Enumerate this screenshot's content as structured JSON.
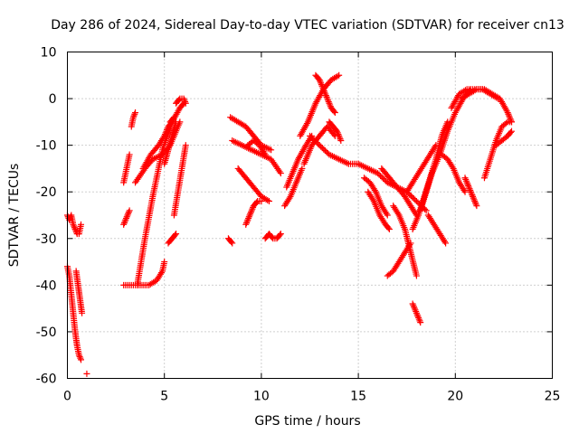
{
  "chart_data": {
    "type": "scatter",
    "title": "Day 286 of 2024, Sidereal Day-to-day VTEC variation (SDTVAR) for receiver cn13",
    "xlabel": "GPS time / hours",
    "ylabel": "SDTVAR / TECUs",
    "xlim": [
      0,
      25
    ],
    "ylim": [
      -60,
      10
    ],
    "x_ticks": [
      0,
      5,
      10,
      15,
      20,
      25
    ],
    "y_ticks": [
      -60,
      -50,
      -40,
      -30,
      -20,
      -10,
      0,
      10
    ],
    "grid": true,
    "marker": "+",
    "series_color": "#ff0000",
    "tracks": [
      {
        "name": "arc-1",
        "x": [
          0.0,
          0.1,
          0.2,
          0.3,
          0.4,
          0.5,
          0.6,
          0.7
        ],
        "y": [
          -25,
          -26,
          -25,
          -27,
          -28,
          -29,
          -29,
          -27
        ]
      },
      {
        "name": "arc-2",
        "x": [
          0.0,
          0.1,
          0.2,
          0.3,
          0.4,
          0.5,
          0.6,
          0.7
        ],
        "y": [
          -36,
          -38,
          -42,
          -46,
          -50,
          -53,
          -55,
          -56
        ]
      },
      {
        "name": "arc-3",
        "x": [
          0.45,
          0.55,
          0.65,
          0.75
        ],
        "y": [
          -37,
          -40,
          -43,
          -46
        ]
      },
      {
        "name": "arc-4",
        "x": [
          1.0
        ],
        "y": [
          -59
        ]
      },
      {
        "name": "arc-5",
        "x": [
          2.9,
          3.0,
          3.1,
          3.2
        ],
        "y": [
          -27,
          -26,
          -25,
          -24
        ]
      },
      {
        "name": "arc-6",
        "x": [
          2.9,
          3.0,
          3.1,
          3.2
        ],
        "y": [
          -18,
          -16,
          -14,
          -12
        ]
      },
      {
        "name": "arc-7",
        "x": [
          3.3,
          3.4,
          3.5
        ],
        "y": [
          -6,
          -4,
          -3
        ]
      },
      {
        "name": "arc-8",
        "x": [
          2.9,
          3.3,
          3.8,
          4.2,
          4.6,
          4.9,
          5.0
        ],
        "y": [
          -40,
          -40,
          -40,
          -40,
          -39,
          -37,
          -35
        ]
      },
      {
        "name": "arc-9",
        "x": [
          3.5,
          4.0,
          4.4,
          4.9,
          5.3,
          5.8
        ],
        "y": [
          -18,
          -15,
          -13,
          -12,
          -10,
          -5
        ]
      },
      {
        "name": "arc-10",
        "x": [
          3.6,
          4.0,
          4.4,
          4.9,
          5.4,
          5.8,
          6.0
        ],
        "y": [
          -40,
          -30,
          -21,
          -11,
          -5,
          -2,
          -1
        ]
      },
      {
        "name": "arc-11",
        "x": [
          3.9,
          4.3,
          4.7,
          5.0,
          5.2,
          5.4
        ],
        "y": [
          -15,
          -12,
          -10,
          -8,
          -6,
          -5
        ]
      },
      {
        "name": "arc-12",
        "x": [
          5.0,
          5.2,
          5.4,
          5.6
        ],
        "y": [
          -14,
          -11,
          -8,
          -5
        ]
      },
      {
        "name": "arc-13",
        "x": [
          5.2,
          5.4,
          5.6
        ],
        "y": [
          -31,
          -30,
          -29
        ]
      },
      {
        "name": "arc-14",
        "x": [
          5.5,
          5.7,
          5.9,
          6.1
        ],
        "y": [
          -25,
          -20,
          -15,
          -10
        ]
      },
      {
        "name": "arc-15",
        "x": [
          5.6,
          5.8,
          6.0,
          6.1
        ],
        "y": [
          -1,
          0,
          0,
          -1
        ]
      },
      {
        "name": "arc-16",
        "x": [
          5.3,
          5.5
        ],
        "y": [
          -5,
          -4
        ]
      },
      {
        "name": "arc-17",
        "x": [
          8.3,
          8.5
        ],
        "y": [
          -30,
          -31
        ]
      },
      {
        "name": "arc-18",
        "x": [
          8.4,
          8.8,
          9.2,
          9.6,
          10.0,
          10.5
        ],
        "y": [
          -4,
          -5,
          -6,
          -8,
          -10,
          -11
        ]
      },
      {
        "name": "arc-19",
        "x": [
          8.5,
          9.0,
          9.5,
          10.0,
          10.5,
          11.0
        ],
        "y": [
          -9,
          -10,
          -11,
          -12,
          -13,
          -16
        ]
      },
      {
        "name": "arc-20",
        "x": [
          8.8,
          9.2,
          9.6,
          10.0,
          10.4
        ],
        "y": [
          -15,
          -17,
          -19,
          -21,
          -22
        ]
      },
      {
        "name": "arc-21",
        "x": [
          9.2,
          9.4,
          9.6,
          9.8,
          10.0
        ],
        "y": [
          -27,
          -25,
          -23,
          -22,
          -22
        ]
      },
      {
        "name": "arc-22",
        "x": [
          9.3,
          9.6,
          9.9,
          10.2
        ],
        "y": [
          -10,
          -9,
          -10,
          -12
        ]
      },
      {
        "name": "arc-23",
        "x": [
          10.2,
          10.4,
          10.6,
          10.8,
          11.0
        ],
        "y": [
          -30,
          -29,
          -30,
          -30,
          -29
        ]
      },
      {
        "name": "arc-24",
        "x": [
          11.2,
          11.5,
          11.8,
          12.1
        ],
        "y": [
          -23,
          -21,
          -18,
          -15
        ]
      },
      {
        "name": "arc-25",
        "x": [
          11.3,
          11.6,
          11.9,
          12.3,
          12.6
        ],
        "y": [
          -19,
          -16,
          -13,
          -10,
          -8
        ]
      },
      {
        "name": "arc-26",
        "x": [
          12.0,
          12.4,
          12.8,
          13.2,
          13.6,
          14.0
        ],
        "y": [
          -8,
          -5,
          -1,
          2,
          4,
          5
        ]
      },
      {
        "name": "arc-27",
        "x": [
          12.5,
          13.0,
          13.5,
          14.0,
          14.5,
          15.0
        ],
        "y": [
          -8,
          -10,
          -12,
          -13,
          -14,
          -14
        ]
      },
      {
        "name": "arc-28",
        "x": [
          12.8,
          13.0,
          13.2,
          13.4,
          13.6,
          13.8
        ],
        "y": [
          5,
          4,
          2,
          0,
          -2,
          -3
        ]
      },
      {
        "name": "arc-29",
        "x": [
          12.2,
          12.6,
          13.0,
          13.4,
          13.8
        ],
        "y": [
          -14,
          -10,
          -8,
          -6,
          -8
        ]
      },
      {
        "name": "arc-30",
        "x": [
          13.5,
          13.7,
          13.9,
          14.1
        ],
        "y": [
          -5,
          -6,
          -7,
          -9
        ]
      },
      {
        "name": "arc-31",
        "x": [
          15.0,
          15.5,
          16.0,
          16.5,
          17.0,
          17.5,
          18.0,
          18.5
        ],
        "y": [
          -14,
          -15,
          -16,
          -18,
          -19,
          -20,
          -22,
          -24
        ]
      },
      {
        "name": "arc-32",
        "x": [
          15.3,
          15.6,
          15.9,
          16.2,
          16.5
        ],
        "y": [
          -17,
          -18,
          -20,
          -23,
          -25
        ]
      },
      {
        "name": "arc-33",
        "x": [
          15.5,
          15.8,
          16.1,
          16.4,
          16.6
        ],
        "y": [
          -20,
          -22,
          -25,
          -27,
          -28
        ]
      },
      {
        "name": "arc-34",
        "x": [
          16.2,
          16.6,
          17.0,
          17.4,
          17.7,
          18.0
        ],
        "y": [
          -15,
          -17,
          -19,
          -21,
          -23,
          -25
        ]
      },
      {
        "name": "arc-35",
        "x": [
          16.5,
          16.8,
          17.1,
          17.4,
          17.7
        ],
        "y": [
          -38,
          -37,
          -35,
          -33,
          -31
        ]
      },
      {
        "name": "arc-36",
        "x": [
          16.8,
          17.1,
          17.4,
          17.7,
          18.0
        ],
        "y": [
          -23,
          -25,
          -28,
          -33,
          -38
        ]
      },
      {
        "name": "arc-37",
        "x": [
          17.8,
          18.0,
          18.2
        ],
        "y": [
          -44,
          -46,
          -48
        ]
      },
      {
        "name": "arc-38",
        "x": [
          17.5,
          17.8,
          18.1,
          18.4,
          18.7,
          19.0
        ],
        "y": [
          -20,
          -18,
          -16,
          -14,
          -12,
          -10
        ]
      },
      {
        "name": "arc-39",
        "x": [
          17.8,
          18.1,
          18.4,
          18.7,
          19.0,
          19.3,
          19.6
        ],
        "y": [
          -28,
          -25,
          -21,
          -17,
          -13,
          -8,
          -5
        ]
      },
      {
        "name": "arc-40",
        "x": [
          18.2,
          18.5,
          18.8,
          19.2,
          19.6,
          20.0,
          20.4,
          20.8
        ],
        "y": [
          -24,
          -20,
          -16,
          -12,
          -7,
          -3,
          0,
          2
        ]
      },
      {
        "name": "arc-41",
        "x": [
          18.6,
          18.9,
          19.2,
          19.5
        ],
        "y": [
          -25,
          -27,
          -29,
          -31
        ]
      },
      {
        "name": "arc-42",
        "x": [
          19.3,
          19.6,
          19.9,
          20.2,
          20.5
        ],
        "y": [
          -12,
          -13,
          -15,
          -18,
          -20
        ]
      },
      {
        "name": "arc-43",
        "x": [
          20.5,
          20.7,
          20.9,
          21.1
        ],
        "y": [
          -17,
          -19,
          -21,
          -23
        ]
      },
      {
        "name": "arc-44",
        "x": [
          19.8,
          20.2,
          20.6,
          21.0,
          21.4,
          21.8,
          22.2
        ],
        "y": [
          -2,
          1,
          2,
          2,
          2,
          1,
          0
        ]
      },
      {
        "name": "arc-45",
        "x": [
          20.3,
          20.7,
          21.1,
          21.5,
          21.9,
          22.3,
          22.7,
          22.9
        ],
        "y": [
          0,
          1,
          2,
          2,
          1,
          0,
          -3,
          -5
        ]
      },
      {
        "name": "arc-46",
        "x": [
          21.5,
          21.8,
          22.1,
          22.4,
          22.7,
          22.9
        ],
        "y": [
          -17,
          -13,
          -9,
          -6,
          -5,
          -5
        ]
      },
      {
        "name": "arc-47",
        "x": [
          22.1,
          22.4,
          22.7,
          22.9
        ],
        "y": [
          -10,
          -9,
          -8,
          -7
        ]
      }
    ]
  }
}
